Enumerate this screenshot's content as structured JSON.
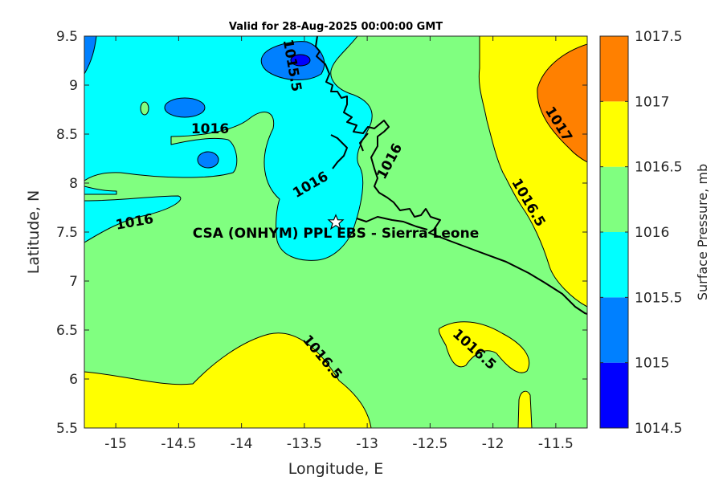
{
  "chart_data": {
    "type": "heatmap",
    "title": "Valid for 28-Aug-2025 00:00:00 GMT",
    "xlabel": "Longitude, E",
    "ylabel": "Latitude, N",
    "xlim": [
      -15.25,
      -11.25
    ],
    "ylim": [
      5.5,
      9.5
    ],
    "xticks": [
      -15,
      -14.5,
      -14,
      -13.5,
      -13,
      -12.5,
      -12,
      -11.5
    ],
    "xtick_labels": [
      "-15",
      "-14.5",
      "-14",
      "-13.5",
      "-13",
      "-12.5",
      "-12",
      "-11.5"
    ],
    "yticks": [
      5.5,
      6,
      6.5,
      7,
      7.5,
      8,
      8.5,
      9,
      9.5
    ],
    "ytick_labels": [
      "5.5",
      "6",
      "6.5",
      "7",
      "7.5",
      "8",
      "8.5",
      "9",
      "9.5"
    ],
    "grid": false,
    "colorbar": {
      "label": "Surface Pressure, mb",
      "levels": [
        1014.5,
        1015,
        1015.5,
        1016,
        1016.5,
        1017,
        1017.5
      ],
      "level_labels": [
        "1014.5",
        "1015",
        "1015.5",
        "1016",
        "1016.5",
        "1017",
        "1017.5"
      ],
      "colors": [
        "#0000ff",
        "#0080ff",
        "#00ffff",
        "#80ff80",
        "#ffff00",
        "#ff8000",
        "#ff0000"
      ]
    },
    "contour_labels": [
      {
        "text": "1015.5",
        "lon": -13.6,
        "lat": 9.2,
        "angle": 80
      },
      {
        "text": "1016",
        "lon": -14.25,
        "lat": 8.55,
        "angle": 0
      },
      {
        "text": "1016",
        "lon": -13.45,
        "lat": 7.98,
        "angle": -30
      },
      {
        "text": "1016",
        "lon": -12.82,
        "lat": 8.22,
        "angle": -62
      },
      {
        "text": "1016",
        "lon": -14.85,
        "lat": 7.6,
        "angle": -10
      },
      {
        "text": "1017",
        "lon": -11.48,
        "lat": 8.6,
        "angle": 58
      },
      {
        "text": "1016.5",
        "lon": -11.72,
        "lat": 7.8,
        "angle": 60
      },
      {
        "text": "1016.5",
        "lon": -13.36,
        "lat": 6.22,
        "angle": 50
      },
      {
        "text": "1016.5",
        "lon": -12.15,
        "lat": 6.3,
        "angle": 42
      }
    ],
    "site": {
      "label": "CSA (ONHYM) PPL EBS  - Sierra Leone",
      "lon": -13.25,
      "lat": 7.6
    }
  }
}
